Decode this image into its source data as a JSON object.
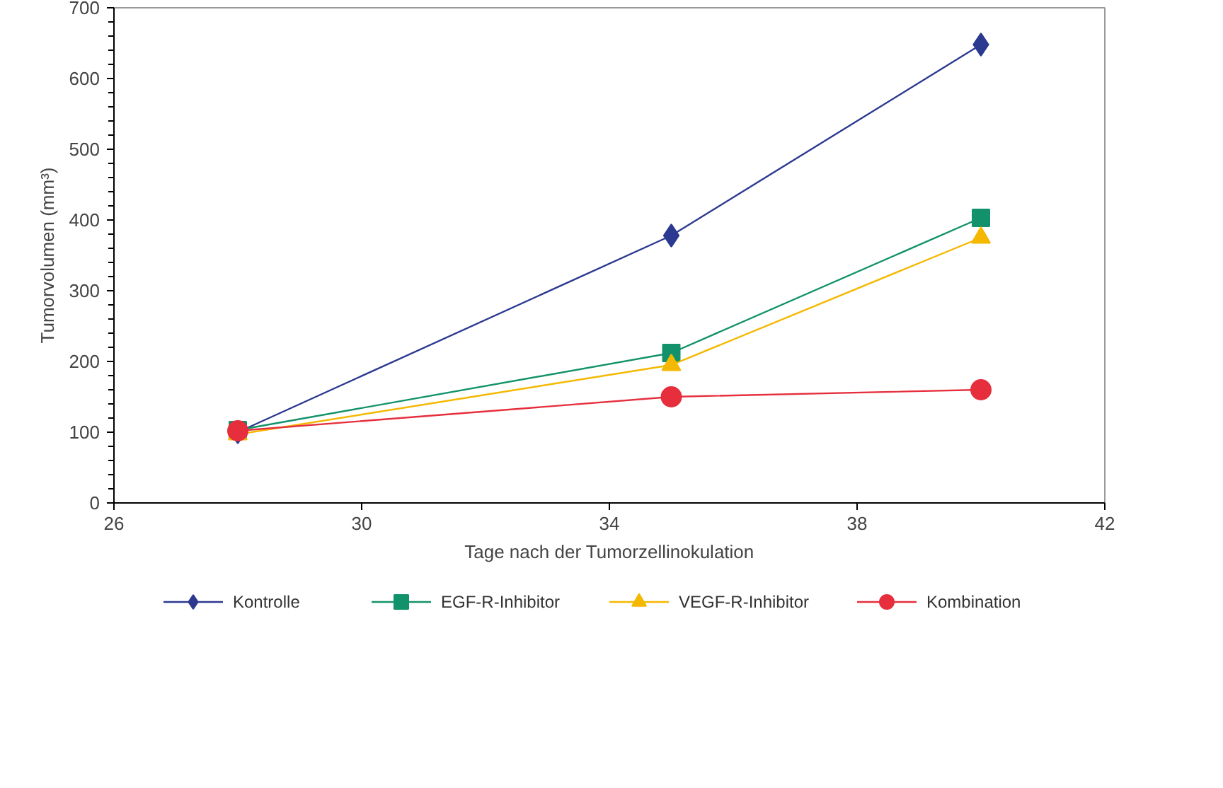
{
  "chart_data": {
    "type": "line",
    "xlabel": "Tage nach der Tumorzellinokulation",
    "ylabel": "Tumorvolumen (mm³)",
    "x": [
      28,
      35,
      40
    ],
    "series": [
      {
        "name": "Kontrolle",
        "color": "#2b3990",
        "marker": "diamond",
        "values": [
          100,
          378,
          648
        ]
      },
      {
        "name": "EGF-R-Inhibitor",
        "color": "#12926a",
        "marker": "square",
        "values": [
          103,
          212,
          403
        ]
      },
      {
        "name": "VEGF-R-Inhibitor",
        "color": "#f5b800",
        "marker": "triangle",
        "values": [
          97,
          195,
          375
        ]
      },
      {
        "name": "Kombination",
        "color": "#e62e3c",
        "marker": "circle",
        "values": [
          102,
          150,
          160
        ]
      }
    ],
    "xlim": [
      26,
      42
    ],
    "xticks": [
      26,
      30,
      34,
      38,
      42
    ],
    "ylim": [
      0,
      700
    ],
    "yticks": [
      0,
      100,
      200,
      300,
      400,
      500,
      600,
      700
    ],
    "grid": false,
    "legend": "bottom",
    "line_style": "solid"
  }
}
